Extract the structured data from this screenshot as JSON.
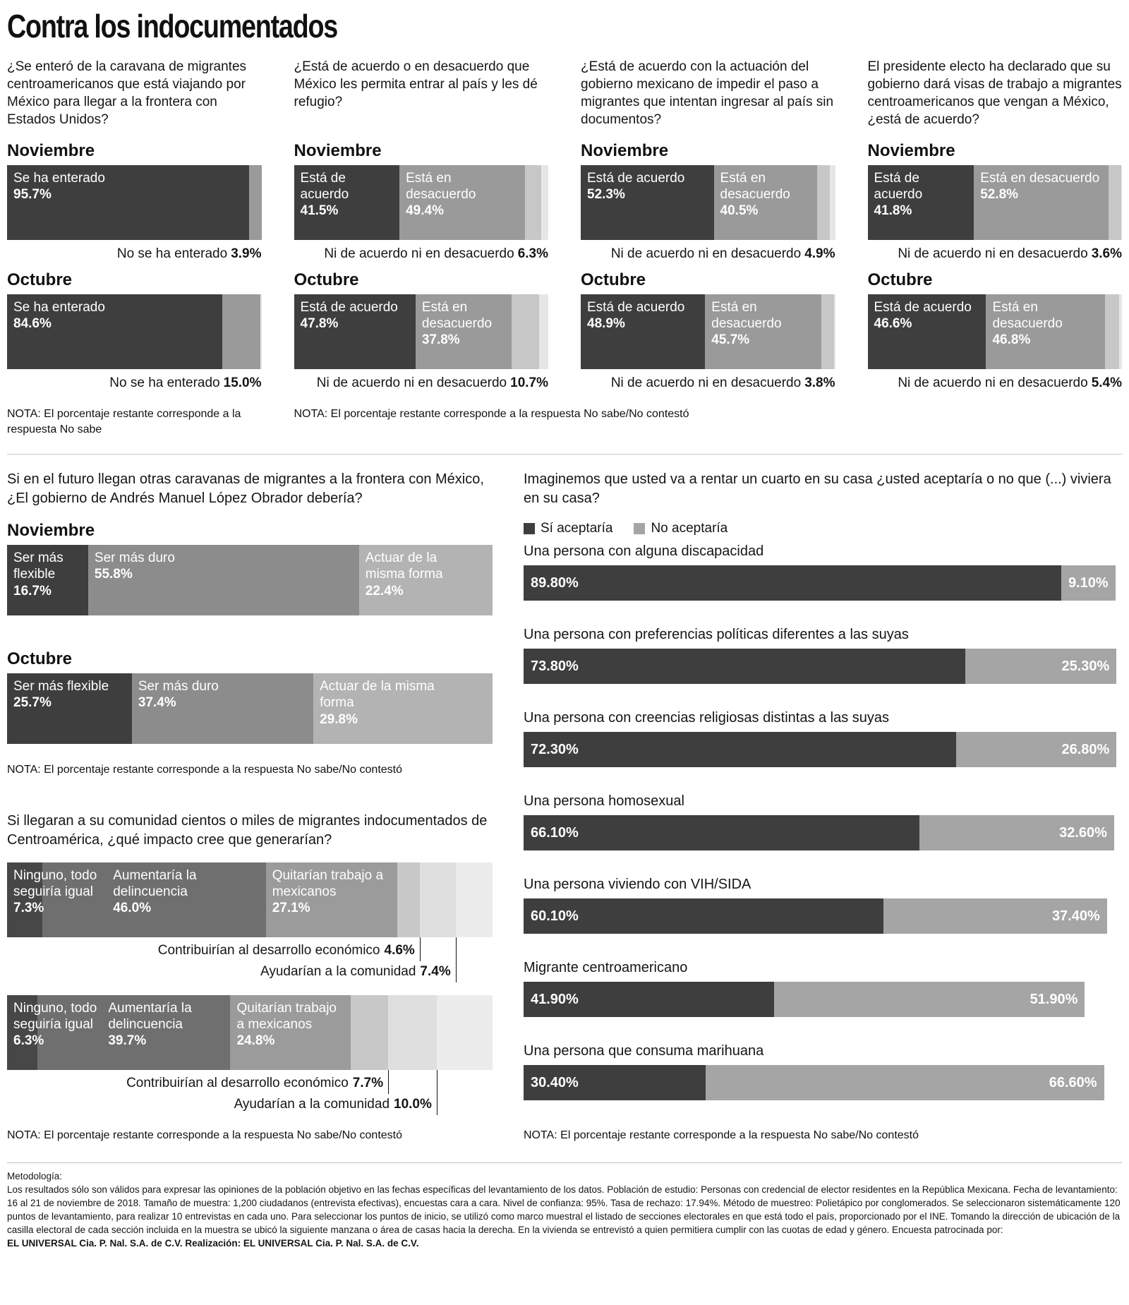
{
  "page": {
    "title": "Contra los indocumentados"
  },
  "palette": {
    "dark": "#3e3e3e",
    "mid": "#9a9a9a",
    "sliver": "#c7c7c7",
    "q5_mid": "#8c8c8c",
    "q5_light": "#b3b3b3",
    "imp1": "#474747",
    "imp2": "#6f6f6f",
    "imp3": "#9b9b9b",
    "imp4": "#c8c8c8",
    "imp5": "#dfdfdf",
    "no_gray": "#a5a5a5"
  },
  "top_section": {
    "nota_first": "NOTA: El porcentaje restante corresponde a la respuesta No sabe",
    "nota_rest": "NOTA: El porcentaje restante corresponde  a la respuesta No sabe/No contestó"
  },
  "chart_data": [
    {
      "id": "caravan-awareness",
      "type": "bar",
      "question": "¿Se enteró de la caravana de migrantes centroamericanos que está viajando por México para llegar a la frontera con Estados Unidos?",
      "months": [
        {
          "label": "Noviembre",
          "segments": [
            {
              "label": "Se ha enterado",
              "pct": "95.7%",
              "value": 95.7,
              "shade": "dark"
            }
          ],
          "tail": {
            "value": 3.9,
            "shade": "mid"
          },
          "below_label": "No se ha enterado",
          "below_value": "3.9%"
        },
        {
          "label": "Octubre",
          "segments": [
            {
              "label": "Se ha enterado",
              "pct": "84.6%",
              "value": 84.6,
              "shade": "dark"
            }
          ],
          "tail": {
            "value": 15.0,
            "shade": "mid"
          },
          "below_label": "No se ha enterado",
          "below_value": "15.0%"
        }
      ]
    },
    {
      "id": "refuge-agreement",
      "type": "bar",
      "question": "¿Está de acuerdo o en desacuerdo que México les permita entrar al país y les dé refugio?",
      "months": [
        {
          "label": "Noviembre",
          "segments": [
            {
              "label": "Está de acuerdo",
              "pct": "41.5%",
              "value": 41.5,
              "shade": "dark"
            },
            {
              "label": "Está en desacuerdo",
              "pct": "49.4%",
              "value": 49.4,
              "shade": "mid"
            }
          ],
          "tail": {
            "value": 6.3,
            "shade": "sliver"
          },
          "below_label": "Ni de acuerdo ni en desacuerdo",
          "below_value": "6.3%"
        },
        {
          "label": "Octubre",
          "segments": [
            {
              "label": "Está de acuerdo",
              "pct": "47.8%",
              "value": 47.8,
              "shade": "dark"
            },
            {
              "label": "Está en desacuerdo",
              "pct": "37.8%",
              "value": 37.8,
              "shade": "mid"
            }
          ],
          "tail": {
            "value": 10.7,
            "shade": "sliver"
          },
          "below_label": "Ni de acuerdo ni en desacuerdo",
          "below_value": "10.7%"
        }
      ]
    },
    {
      "id": "blocking-agreement",
      "type": "bar",
      "question": "¿Está de acuerdo con la actuación del gobierno mexicano de impedir el paso a migrantes que intentan ingresar al país sin documentos?",
      "months": [
        {
          "label": "Noviembre",
          "segments": [
            {
              "label": "Está de acuerdo",
              "pct": "52.3%",
              "value": 52.3,
              "shade": "dark"
            },
            {
              "label": "Está en desacuerdo",
              "pct": "40.5%",
              "value": 40.5,
              "shade": "mid"
            }
          ],
          "tail": {
            "value": 4.9,
            "shade": "sliver"
          },
          "below_label": "Ni de acuerdo ni en desacuerdo",
          "below_value": "4.9%"
        },
        {
          "label": "Octubre",
          "segments": [
            {
              "label": "Está de acuerdo",
              "pct": "48.9%",
              "value": 48.9,
              "shade": "dark"
            },
            {
              "label": "Está en desacuerdo",
              "pct": "45.7%",
              "value": 45.7,
              "shade": "mid"
            }
          ],
          "tail": {
            "value": 3.8,
            "shade": "sliver"
          },
          "below_label": "Ni de acuerdo ni en desacuerdo",
          "below_value": "3.8%"
        }
      ]
    },
    {
      "id": "work-visas-agreement",
      "type": "bar",
      "question": "El presidente electo ha declarado que su gobierno dará visas de trabajo a migrantes centroamericanos que vengan a México, ¿está de acuerdo?",
      "months": [
        {
          "label": "Noviembre",
          "segments": [
            {
              "label": "Está de acuerdo",
              "pct": "41.8%",
              "value": 41.8,
              "shade": "dark"
            },
            {
              "label": "Está en desacuerdo",
              "pct": "52.8%",
              "value": 52.8,
              "shade": "mid"
            }
          ],
          "tail": {
            "value": 3.6,
            "shade": "sliver"
          },
          "below_label": "Ni de acuerdo ni en desacuerdo",
          "below_value": "3.6%"
        },
        {
          "label": "Octubre",
          "segments": [
            {
              "label": "Está de acuerdo",
              "pct": "46.6%",
              "value": 46.6,
              "shade": "dark"
            },
            {
              "label": "Está en desacuerdo",
              "pct": "46.8%",
              "value": 46.8,
              "shade": "mid"
            }
          ],
          "tail": {
            "value": 5.4,
            "shade": "sliver"
          },
          "below_label": "Ni de acuerdo ni en desacuerdo",
          "below_value": "5.4%"
        }
      ]
    },
    {
      "id": "future-caravans",
      "type": "bar",
      "question": "Si en el futuro llegan otras caravanas de migrantes a la frontera con México, ¿El gobierno de Andrés Manuel López Obrador debería?",
      "months": [
        {
          "label": "Noviembre",
          "segments": [
            {
              "label": "Ser más flexible",
              "pct": "16.7%",
              "value": 16.7,
              "shade": "dark"
            },
            {
              "label": "Ser más duro",
              "pct": "55.8%",
              "value": 55.8,
              "shade": "q5_mid"
            },
            {
              "label": "Actuar de la misma forma",
              "pct": "22.4%",
              "value": 22.4,
              "shade": "q5_light"
            }
          ]
        },
        {
          "label": "Octubre",
          "segments": [
            {
              "label": "Ser más flexible",
              "pct": "25.7%",
              "value": 25.7,
              "shade": "dark"
            },
            {
              "label": "Ser más duro",
              "pct": "37.4%",
              "value": 37.4,
              "shade": "q5_mid"
            },
            {
              "label": "Actuar de la misma forma",
              "pct": "29.8%",
              "value": 29.8,
              "shade": "q5_light"
            }
          ]
        }
      ],
      "nota": "NOTA: El porcentaje restante corresponde  a la respuesta No sabe/No contestó"
    },
    {
      "id": "community-impact",
      "type": "bar",
      "question": "Si llegaran a su comunidad cientos o miles de migrantes indocumentados de Centroamérica, ¿qué impacto cree que generarían?",
      "bars": [
        {
          "segments": [
            {
              "label": "Ninguno, todo seguiría igual",
              "pct": "7.3%",
              "value": 7.3,
              "shade": "imp1",
              "label_position": "inside"
            },
            {
              "label": "Aumentaría la delincuencia",
              "pct": "46.0%",
              "value": 46.0,
              "shade": "imp2",
              "label_position": "inside"
            },
            {
              "label": "Quitarían trabajo a mexicanos",
              "pct": "27.1%",
              "value": 27.1,
              "shade": "imp3",
              "label_position": "inside"
            },
            {
              "label": "Contribuirían al desarrollo económico",
              "pct": "4.6%",
              "value": 4.6,
              "shade": "imp4",
              "label_position": "callout"
            },
            {
              "label": "Ayudarían a la comunidad",
              "pct": "7.4%",
              "value": 7.4,
              "shade": "imp5",
              "label_position": "callout"
            }
          ]
        },
        {
          "segments": [
            {
              "label": "Ninguno, todo seguiría igual",
              "pct": "6.3%",
              "value": 6.3,
              "shade": "imp1",
              "label_position": "inside"
            },
            {
              "label": "Aumentaría la delincuencia",
              "pct": "39.7%",
              "value": 39.7,
              "shade": "imp2",
              "label_position": "inside"
            },
            {
              "label": "Quitarían trabajo a mexicanos",
              "pct": "24.8%",
              "value": 24.8,
              "shade": "imp3",
              "label_position": "inside"
            },
            {
              "label": "Contribuirían al desarrollo económico",
              "pct": "7.7%",
              "value": 7.7,
              "shade": "imp4",
              "label_position": "callout"
            },
            {
              "label": "Ayudarían a la comunidad",
              "pct": "10.0%",
              "value": 10.0,
              "shade": "imp5",
              "label_position": "callout"
            }
          ]
        }
      ],
      "nota": "NOTA: El porcentaje restante corresponde  a la respuesta No sabe/No contestó"
    },
    {
      "id": "room-renting",
      "type": "bar",
      "question": "Imaginemos que usted va a rentar un cuarto en su casa ¿usted aceptaría o no que (...) viviera en su casa?",
      "legend": [
        {
          "label": "Sí aceptaría",
          "shade": "dark"
        },
        {
          "label": "No aceptaría",
          "shade": "no_gray"
        }
      ],
      "rows": [
        {
          "label": "Una persona con alguna discapacidad",
          "yes": "89.80%",
          "yes_value": 89.8,
          "no": "9.10%",
          "no_value": 9.1
        },
        {
          "label": "Una persona con preferencias políticas diferentes a las suyas",
          "yes": "73.80%",
          "yes_value": 73.8,
          "no": "25.30%",
          "no_value": 25.3
        },
        {
          "label": "Una persona con creencias religiosas distintas a las suyas",
          "yes": "72.30%",
          "yes_value": 72.3,
          "no": "26.80%",
          "no_value": 26.8
        },
        {
          "label": "Una persona homosexual",
          "yes": "66.10%",
          "yes_value": 66.1,
          "no": "32.60%",
          "no_value": 32.6
        },
        {
          "label": "Una persona viviendo con VIH/SIDA",
          "yes": "60.10%",
          "yes_value": 60.1,
          "no": "37.40%",
          "no_value": 37.4
        },
        {
          "label": "Migrante centroamericano",
          "yes": "41.90%",
          "yes_value": 41.9,
          "no": "51.90%",
          "no_value": 51.9
        },
        {
          "label": "Una persona que consuma marihuana",
          "yes": "30.40%",
          "yes_value": 30.4,
          "no": "66.60%",
          "no_value": 66.6
        }
      ],
      "nota": "NOTA: El porcentaje restante corresponde  a la respuesta No sabe/No contestó"
    }
  ],
  "footer": {
    "heading": "Metodología:",
    "body": "Los resultados sólo son válidos para expresar las opiniones de la población objetivo en las fechas específicas del levantamiento de los datos. Población de estudio: Personas con credencial de elector residentes en la República Mexicana. Fecha de levantamiento: 16 al 21 de noviembre de 2018. Tamaño de muestra: 1,200 ciudadanos (entrevista efectivas), encuestas cara a cara. Nivel de confianza: 95%. Tasa de rechazo: 17.94%. Método de muestreo: Polietápico por conglomerados. Se seleccionaron sistemáticamente 120 puntos de levantamiento, para realizar 10 entrevistas en cada uno. Para seleccionar los puntos de inicio, se utilizó como marco muestral el listado de secciones electorales en que está todo el país, proporcionado por el INE. Tomando la dirección de ubicación de la casilla electoral de cada sección incluida en la muestra se ubicó la siguiente manzana o área de casas hacia la derecha. En la vivienda se entrevistó a quien permitiera cumplir con las cuotas de edad y género. Encuesta patrocinada por:",
    "credit": "EL UNIVERSAL Cia. P. Nal. S.A. de C.V. Realización: EL UNIVERSAL Cia. P. Nal. S.A. de C.V."
  }
}
